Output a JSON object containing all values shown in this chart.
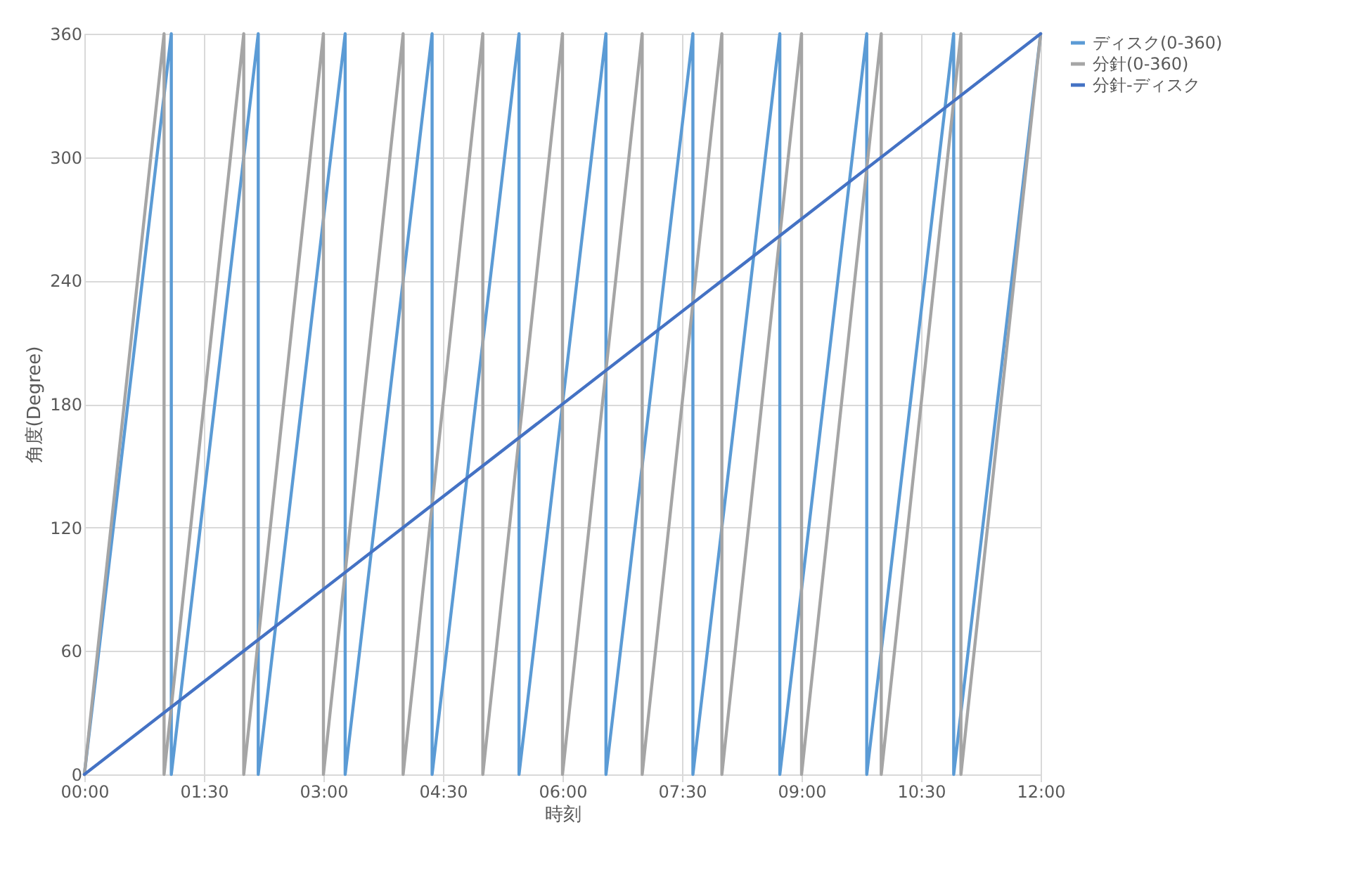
{
  "chart_data": {
    "type": "line",
    "xlabel": "時刻",
    "ylabel": "角度(Degree)",
    "xlim": [
      0,
      12
    ],
    "xticks": [
      {
        "value": 0,
        "label": "00:00"
      },
      {
        "value": 1.5,
        "label": "01:30"
      },
      {
        "value": 3,
        "label": "03:00"
      },
      {
        "value": 4.5,
        "label": "04:30"
      },
      {
        "value": 6,
        "label": "06:00"
      },
      {
        "value": 7.5,
        "label": "07:30"
      },
      {
        "value": 9,
        "label": "09:00"
      },
      {
        "value": 10.5,
        "label": "10:30"
      },
      {
        "value": 12,
        "label": "12:00"
      }
    ],
    "ylim": [
      0,
      360
    ],
    "yticks": [
      0,
      60,
      120,
      180,
      240,
      300,
      360
    ],
    "grid": true,
    "legend": "right",
    "line_style": "solid",
    "marker": "none",
    "series": [
      {
        "name": "ディスク(0-360)",
        "color": "#5b9bd5",
        "x": [
          0,
          1.0909,
          1.0909,
          2.1818,
          2.1818,
          3.2727,
          3.2727,
          4.3636,
          4.3636,
          5.4545,
          5.4545,
          6.5455,
          6.5455,
          7.6364,
          7.6364,
          8.7273,
          8.7273,
          9.8182,
          9.8182,
          10.9091,
          10.9091,
          12
        ],
        "values": [
          0,
          360,
          0,
          360,
          0,
          360,
          0,
          360,
          0,
          360,
          0,
          360,
          0,
          360,
          0,
          360,
          0,
          360,
          0,
          360,
          0,
          360
        ]
      },
      {
        "name": "分針(0-360)",
        "color": "#a5a5a5",
        "x": [
          0,
          1,
          1,
          2,
          2,
          3,
          3,
          4,
          4,
          5,
          5,
          6,
          6,
          7,
          7,
          8,
          8,
          9,
          9,
          10,
          10,
          11,
          11,
          12
        ],
        "values": [
          0,
          360,
          0,
          360,
          0,
          360,
          0,
          360,
          0,
          360,
          0,
          360,
          0,
          360,
          0,
          360,
          0,
          360,
          0,
          360,
          0,
          360,
          0,
          360
        ]
      },
      {
        "name": "分針-ディスク",
        "color": "#4472c4",
        "x": [
          0,
          12
        ],
        "values": [
          0,
          360
        ]
      }
    ]
  }
}
